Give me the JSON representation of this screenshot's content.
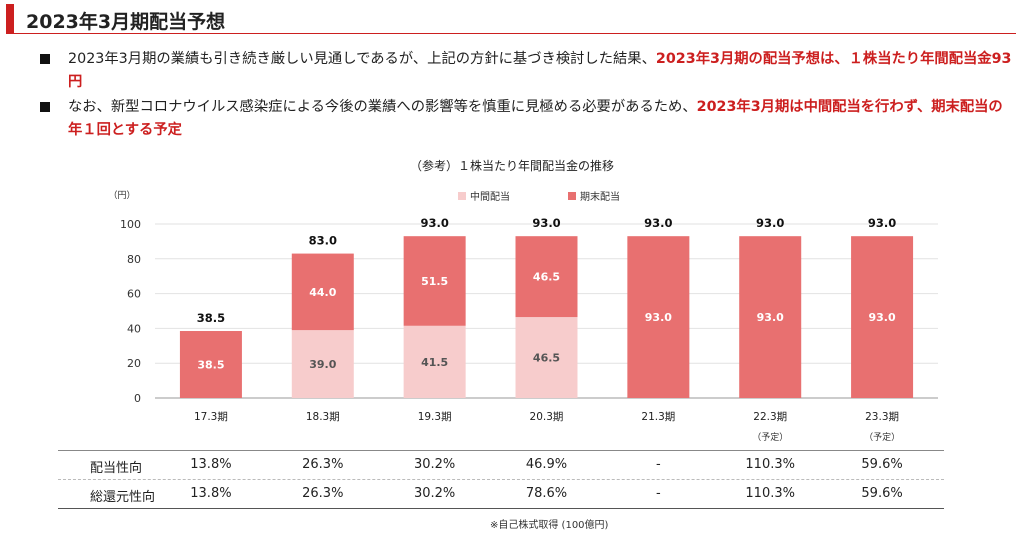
{
  "header": {
    "title": "2023年3月期配当予想"
  },
  "bullets": [
    {
      "normal": "2023年3月期の業績も引き続き厳しい見通しであるが、上記の方針に基づき検討した結果、",
      "highlight": "2023年3月期の配当予想は、１株当たり年間配当金93円"
    },
    {
      "normal": "なお、新型コロナウイルス感染症による今後の業績への影響等を慎重に見極める必要があるため、",
      "highlight": "2023年3月期は中間配当を行わず、期末配当の年１回とする予定"
    }
  ],
  "chart_data": {
    "type": "bar",
    "stacked": true,
    "title": "（参考）１株当たり年間配当金の推移",
    "unit_label": "（円）",
    "categories": [
      "17.3期",
      "18.3期",
      "19.3期",
      "20.3期",
      "21.3期",
      "22.3期",
      "23.3期"
    ],
    "category_notes": [
      "",
      "",
      "",
      "",
      "",
      "（予定）",
      "（予定）"
    ],
    "series": [
      {
        "name": "中間配当",
        "color": "#f7cccc",
        "values": [
          0,
          39.0,
          41.5,
          46.5,
          0,
          0,
          0
        ]
      },
      {
        "name": "期末配当",
        "color": "#e87070",
        "values": [
          38.5,
          44.0,
          51.5,
          46.5,
          93.0,
          93.0,
          93.0
        ]
      }
    ],
    "totals": [
      38.5,
      83.0,
      93.0,
      93.0,
      93.0,
      93.0,
      93.0
    ],
    "ylim": [
      0,
      100
    ],
    "yticks": [
      0,
      20,
      40,
      60,
      80,
      100
    ],
    "grid": true,
    "legend_position": "top"
  },
  "table": {
    "rows": [
      {
        "label": "配当性向",
        "values": [
          "13.8%",
          "26.3%",
          "30.2%",
          "46.9%",
          "-",
          "110.3%",
          "59.6%"
        ]
      },
      {
        "label": "総還元性向",
        "values": [
          "13.8%",
          "26.3%",
          "30.2%",
          "78.6%",
          "-",
          "110.3%",
          "59.6%"
        ]
      }
    ]
  },
  "footnote": "※自己株式取得 (100億円)"
}
